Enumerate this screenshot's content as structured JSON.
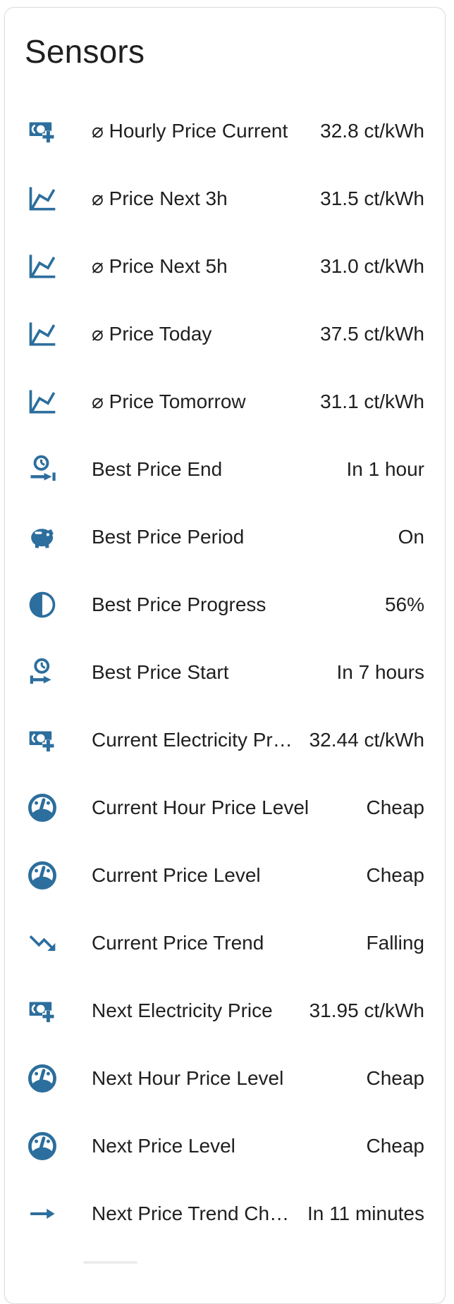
{
  "card": {
    "title": "Sensors",
    "accent_color": "#2c6e9d",
    "text_color": "#1f1f1f"
  },
  "sensors": [
    {
      "icon": "cash-plus-icon",
      "label": "⌀ Hourly Price Current",
      "value": "32.8 ct/kWh"
    },
    {
      "icon": "chart-line-icon",
      "label": "⌀ Price Next 3h",
      "value": "31.5 ct/kWh"
    },
    {
      "icon": "chart-line-icon",
      "label": "⌀ Price Next 5h",
      "value": "31.0 ct/kWh"
    },
    {
      "icon": "chart-line-icon",
      "label": "⌀ Price Today",
      "value": "37.5 ct/kWh"
    },
    {
      "icon": "chart-line-icon",
      "label": "⌀ Price Tomorrow",
      "value": "31.1 ct/kWh"
    },
    {
      "icon": "clock-end-icon",
      "label": "Best Price End",
      "value": "In 1 hour"
    },
    {
      "icon": "piggy-bank-icon",
      "label": "Best Price Period",
      "value": "On"
    },
    {
      "icon": "circle-half-full-icon",
      "label": "Best Price Progress",
      "value": "56%"
    },
    {
      "icon": "clock-start-icon",
      "label": "Best Price Start",
      "value": "In 7 hours"
    },
    {
      "icon": "cash-plus-icon",
      "label": "Current Electricity Pr…",
      "value": "32.44 ct/kWh"
    },
    {
      "icon": "gauge-icon",
      "label": "Current Hour Price Level",
      "value": "Cheap"
    },
    {
      "icon": "gauge-icon",
      "label": "Current Price Level",
      "value": "Cheap"
    },
    {
      "icon": "trending-down-icon",
      "label": "Current Price Trend",
      "value": "Falling"
    },
    {
      "icon": "cash-plus-icon",
      "label": "Next Electricity Price",
      "value": "31.95 ct/kWh"
    },
    {
      "icon": "gauge-icon",
      "label": "Next Hour Price Level",
      "value": "Cheap"
    },
    {
      "icon": "gauge-icon",
      "label": "Next Price Level",
      "value": "Cheap"
    },
    {
      "icon": "arrow-right-icon",
      "label": "Next Price Trend Ch…",
      "value": "In 11 minutes"
    }
  ]
}
